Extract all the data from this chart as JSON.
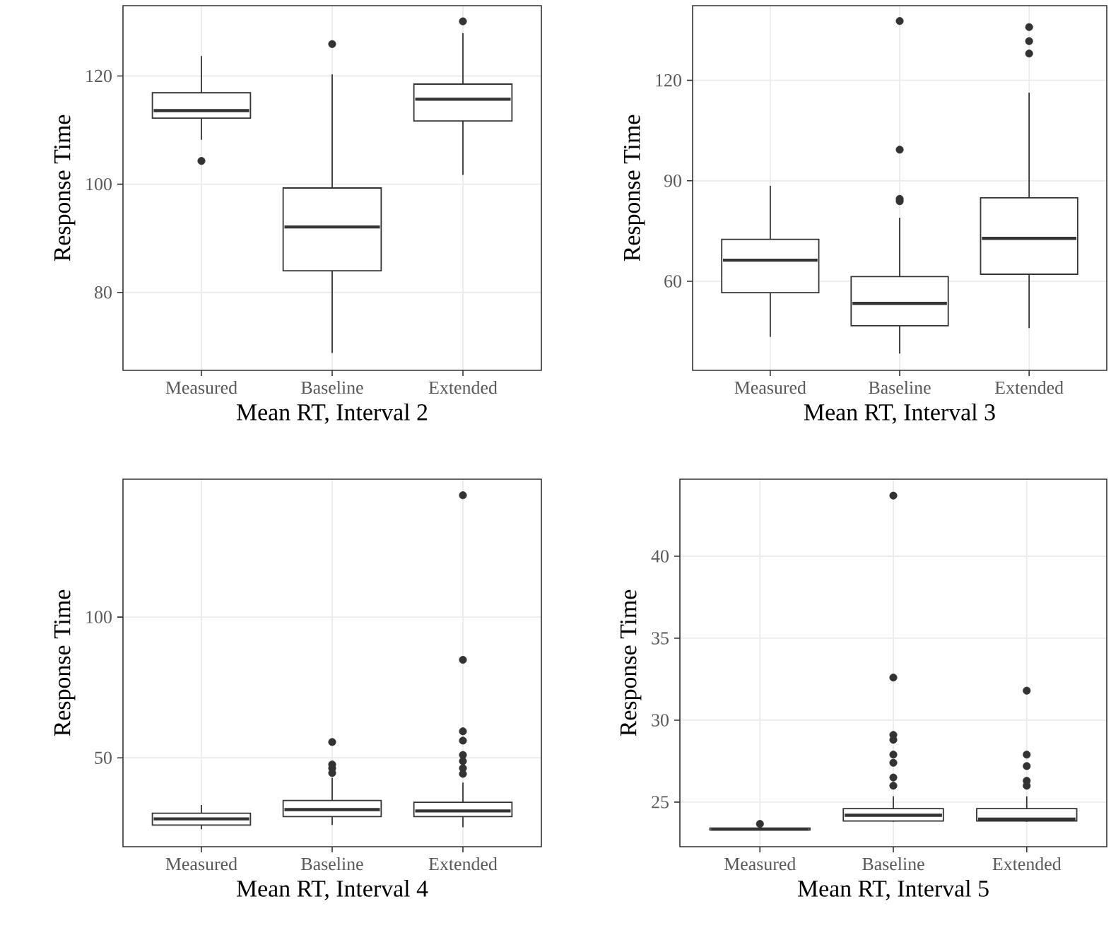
{
  "chart_data": [
    {
      "type": "box",
      "xlabel": "Mean RT, Interval 2",
      "ylabel": "Response Time",
      "categories": [
        "Measured",
        "Baseline",
        "Extended"
      ],
      "color": "#333333",
      "grid": true,
      "ylim": [
        65.6,
        133
      ],
      "yticks": [
        80,
        100,
        120
      ],
      "boxes": [
        {
          "low": 108.2,
          "q1": 112.2,
          "median": 113.6,
          "q3": 116.9,
          "high": 123.7,
          "outliers": [
            104.3
          ]
        },
        {
          "low": 68.8,
          "q1": 84,
          "median": 92.1,
          "q3": 99.3,
          "high": 120.3,
          "outliers": [
            125.9
          ]
        },
        {
          "low": 101.7,
          "q1": 111.7,
          "median": 115.7,
          "q3": 118.5,
          "high": 127.9,
          "outliers": [
            130.1
          ]
        }
      ]
    },
    {
      "type": "box",
      "xlabel": "Mean RT, Interval 3",
      "ylabel": "Response Time",
      "categories": [
        "Measured",
        "Baseline",
        "Extended"
      ],
      "color": "#333333",
      "grid": true,
      "ylim": [
        33.4,
        142.3
      ],
      "yticks": [
        60,
        90,
        120
      ],
      "boxes": [
        {
          "low": 43.4,
          "q1": 56.6,
          "median": 66.3,
          "q3": 72.5,
          "high": 88.5
        },
        {
          "low": 38.4,
          "q1": 46.7,
          "median": 53.4,
          "q3": 61.4,
          "high": 79.0,
          "outliers": [
            137.7,
            99.3,
            84.6,
            83.9
          ]
        },
        {
          "low": 46.0,
          "q1": 62.1,
          "median": 72.8,
          "q3": 84.9,
          "high": 116.3,
          "outliers": [
            135.9,
            131.7,
            128.0
          ]
        }
      ]
    },
    {
      "type": "box",
      "xlabel": "Mean RT, Interval 4",
      "ylabel": "Response Time",
      "categories": [
        "Measured",
        "Baseline",
        "Extended"
      ],
      "color": "#333333",
      "grid": true,
      "ylim": [
        18.4,
        149
      ],
      "yticks": [
        50,
        100
      ],
      "boxes": [
        {
          "low": 24.6,
          "q1": 26.1,
          "median": 28.3,
          "q3": 30.3,
          "high": 33.2
        },
        {
          "low": 26.1,
          "q1": 29.1,
          "median": 31.6,
          "q3": 34.8,
          "high": 42.9,
          "outliers": [
            55.6,
            47.6,
            46.3,
            44.6
          ]
        },
        {
          "low": 25.3,
          "q1": 29.1,
          "median": 31.1,
          "q3": 34.2,
          "high": 41.2,
          "outliers": [
            143.3,
            84.8,
            59.4,
            56.1,
            51.0,
            48.8,
            46.3,
            44.3
          ]
        }
      ]
    },
    {
      "type": "box",
      "xlabel": "Mean RT, Interval 5",
      "ylabel": "Response Time",
      "categories": [
        "Measured",
        "Baseline",
        "Extended"
      ],
      "color": "#333333",
      "grid": true,
      "ylim": [
        22.28,
        44.7
      ],
      "yticks": [
        25,
        30,
        35,
        40
      ],
      "boxes": [
        {
          "low": 23.28,
          "q1": 23.3,
          "median": 23.35,
          "q3": 23.42,
          "high": 23.5,
          "outliers": [
            23.67
          ]
        },
        {
          "low": 23.8,
          "q1": 23.85,
          "median": 24.2,
          "q3": 24.6,
          "high": 25.35,
          "outliers": [
            43.7,
            32.6,
            29.1,
            28.8,
            27.9,
            27.4,
            26.5,
            26.0
          ]
        },
        {
          "low": 23.8,
          "q1": 23.85,
          "median": 23.96,
          "q3": 24.6,
          "high": 25.35,
          "outliers": [
            31.8,
            27.9,
            27.2,
            26.3,
            26.0
          ]
        }
      ]
    }
  ]
}
